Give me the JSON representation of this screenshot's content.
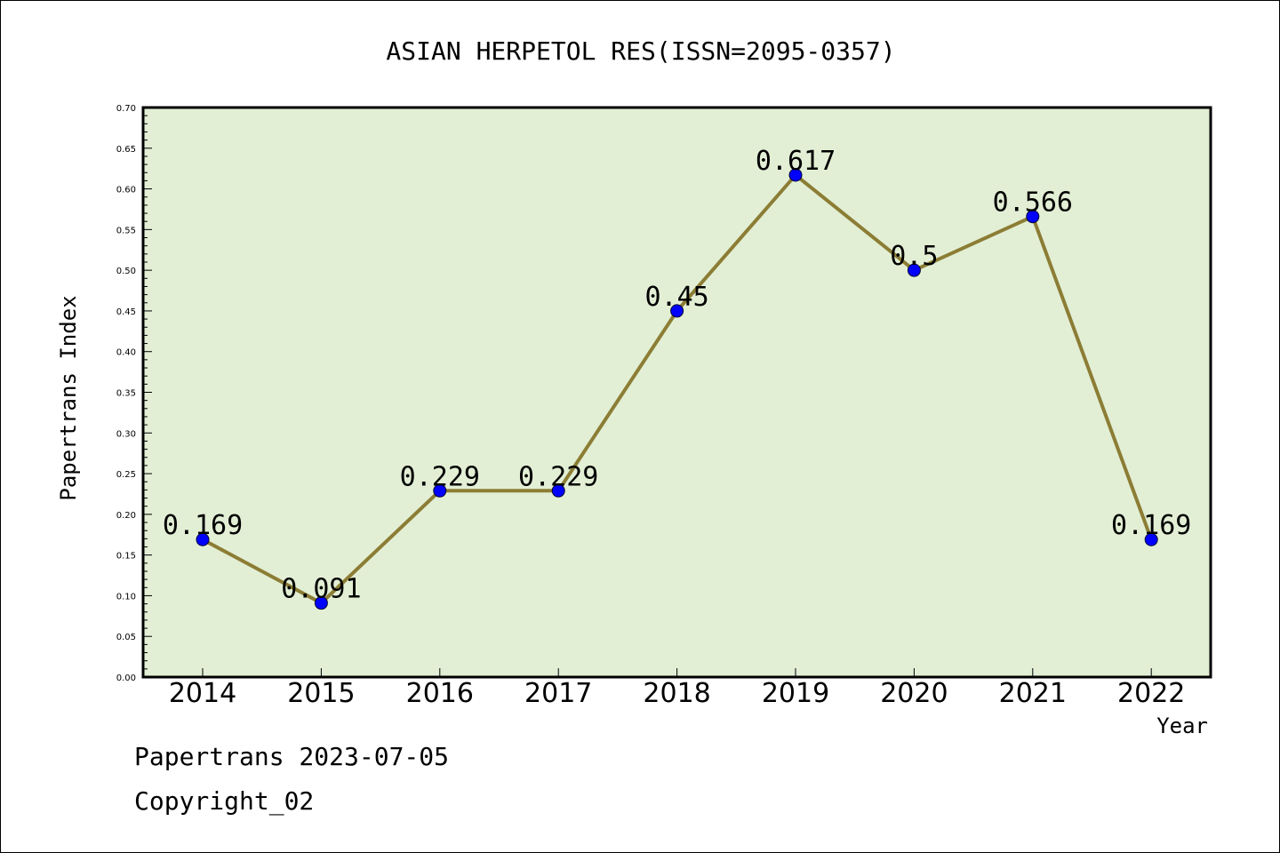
{
  "footer": {
    "line1": "Papertrans 2023-07-05",
    "line2": "Copyright_02"
  },
  "chart_data": {
    "type": "line",
    "title": "ASIAN HERPETOL RES(ISSN=2095-0357)",
    "xlabel": "Year",
    "ylabel": "Papertrans Index",
    "categories": [
      "2014",
      "2015",
      "2016",
      "2017",
      "2018",
      "2019",
      "2020",
      "2021",
      "2022"
    ],
    "values": [
      0.169,
      0.091,
      0.229,
      0.229,
      0.45,
      0.617,
      0.5,
      0.566,
      0.169
    ],
    "data_labels": [
      "0.169",
      "0.091",
      "0.229",
      "0.229",
      "0.45",
      "0.617",
      "0.5",
      "0.566",
      "0.169"
    ],
    "ylim": [
      0,
      0.7
    ],
    "yticks": [
      "0.00",
      "0.05",
      "0.10",
      "0.15",
      "0.20",
      "0.25",
      "0.30",
      "0.35",
      "0.40",
      "0.45",
      "0.50",
      "0.55",
      "0.60",
      "0.65",
      "0.70"
    ],
    "grid": false,
    "legend": "none",
    "colors": {
      "plot_background": "#e2efd5",
      "line": "#8c7d35",
      "marker": "#0000ff"
    }
  }
}
